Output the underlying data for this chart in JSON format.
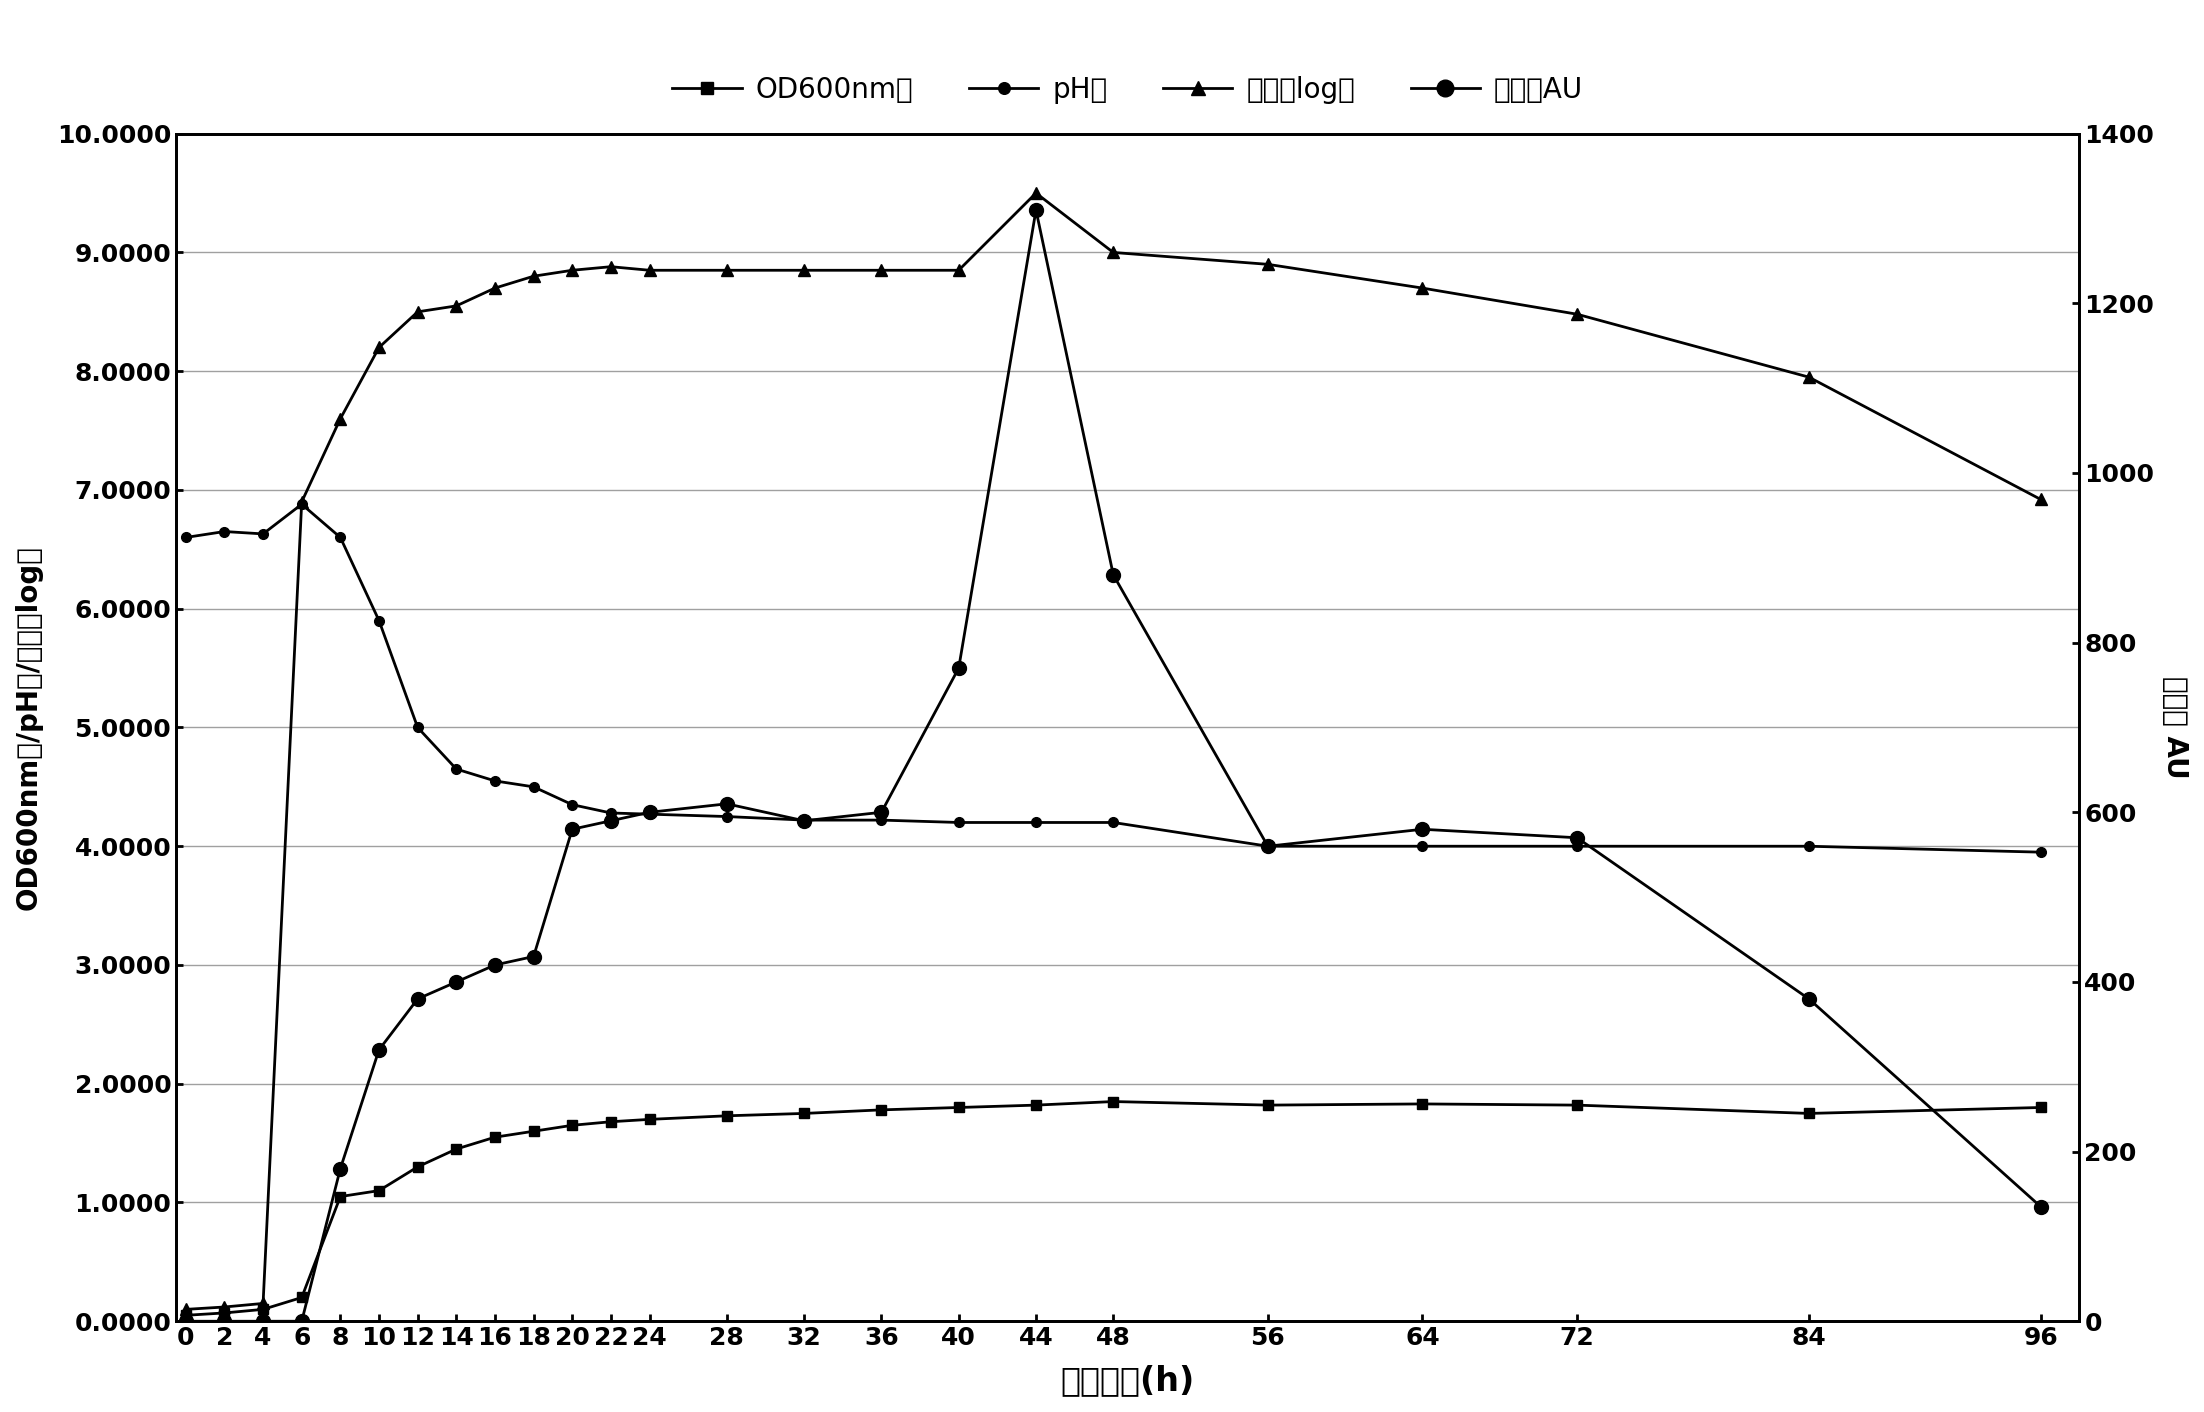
{
  "title": "",
  "xlabel": "发酵时间(h)",
  "ylabel_left": "OD600nm值/pH值/活菌数log值",
  "ylabel_right": "效价值 AU",
  "x_ticks": [
    0,
    2,
    4,
    6,
    8,
    10,
    12,
    14,
    16,
    18,
    20,
    22,
    24,
    28,
    32,
    36,
    40,
    44,
    48,
    56,
    64,
    72,
    84,
    96
  ],
  "ylim_left": [
    0.0,
    10.0
  ],
  "ylim_right": [
    0,
    1400
  ],
  "yticks_left": [
    0.0,
    1.0,
    2.0,
    3.0,
    4.0,
    5.0,
    6.0,
    7.0,
    8.0,
    9.0,
    10.0
  ],
  "yticks_right": [
    0,
    200,
    400,
    600,
    800,
    1000,
    1200,
    1400
  ],
  "series": {
    "OD600": {
      "label": "OD600nm值",
      "x": [
        0,
        2,
        4,
        6,
        8,
        10,
        12,
        14,
        16,
        18,
        20,
        22,
        24,
        28,
        32,
        36,
        40,
        44,
        48,
        56,
        64,
        72,
        84,
        96
      ],
      "y": [
        0.05,
        0.07,
        0.1,
        0.2,
        1.05,
        1.1,
        1.3,
        1.45,
        1.55,
        1.6,
        1.65,
        1.68,
        1.7,
        1.73,
        1.75,
        1.78,
        1.8,
        1.82,
        1.85,
        1.82,
        1.83,
        1.82,
        1.75,
        1.8
      ],
      "color": "#000000",
      "marker": "s",
      "linestyle": "-",
      "markersize": 7
    },
    "pH": {
      "label": "pH值",
      "x": [
        0,
        2,
        4,
        6,
        8,
        10,
        12,
        14,
        16,
        18,
        20,
        22,
        24,
        28,
        32,
        36,
        40,
        44,
        48,
        56,
        64,
        72,
        84,
        96
      ],
      "y": [
        6.6,
        6.65,
        6.63,
        6.88,
        6.6,
        5.9,
        5.0,
        4.65,
        4.55,
        4.5,
        4.35,
        4.28,
        4.27,
        4.25,
        4.22,
        4.22,
        4.2,
        4.2,
        4.2,
        4.0,
        4.0,
        4.0,
        4.0,
        3.95
      ],
      "color": "#000000",
      "marker": "o",
      "linestyle": "-",
      "markersize": 7,
      "markerfacecolor": "#000000"
    },
    "viable": {
      "label": "活菌数log值",
      "x": [
        0,
        2,
        4,
        6,
        8,
        10,
        12,
        14,
        16,
        18,
        20,
        22,
        24,
        28,
        32,
        36,
        40,
        44,
        48,
        56,
        64,
        72,
        84,
        96
      ],
      "y": [
        0.1,
        0.12,
        0.15,
        6.9,
        7.6,
        8.2,
        8.5,
        8.55,
        8.7,
        8.8,
        8.85,
        8.88,
        8.85,
        8.85,
        8.85,
        8.85,
        8.85,
        9.5,
        9.0,
        8.9,
        8.7,
        8.48,
        7.95,
        6.92
      ],
      "color": "#000000",
      "marker": "^",
      "linestyle": "-",
      "markersize": 8
    },
    "AU": {
      "label": "效价值AU",
      "x": [
        0,
        2,
        4,
        6,
        8,
        10,
        12,
        14,
        16,
        18,
        20,
        22,
        24,
        28,
        32,
        36,
        40,
        44,
        48,
        56,
        64,
        72,
        84,
        96
      ],
      "y": [
        0,
        0,
        0,
        0,
        180,
        320,
        380,
        400,
        420,
        430,
        580,
        590,
        600,
        610,
        590,
        600,
        770,
        1310,
        880,
        560,
        580,
        570,
        380,
        135
      ],
      "color": "#000000",
      "marker": "o",
      "linestyle": "-",
      "markersize": 10,
      "markerfacecolor": "#000000"
    }
  },
  "legend_labels": [
    "OD600nm值",
    "pH值",
    "活菌数log值",
    "效价值AU"
  ],
  "legend_markers": [
    "s",
    "o",
    "^",
    "o"
  ],
  "background_color": "#ffffff",
  "grid_color": "#888888"
}
